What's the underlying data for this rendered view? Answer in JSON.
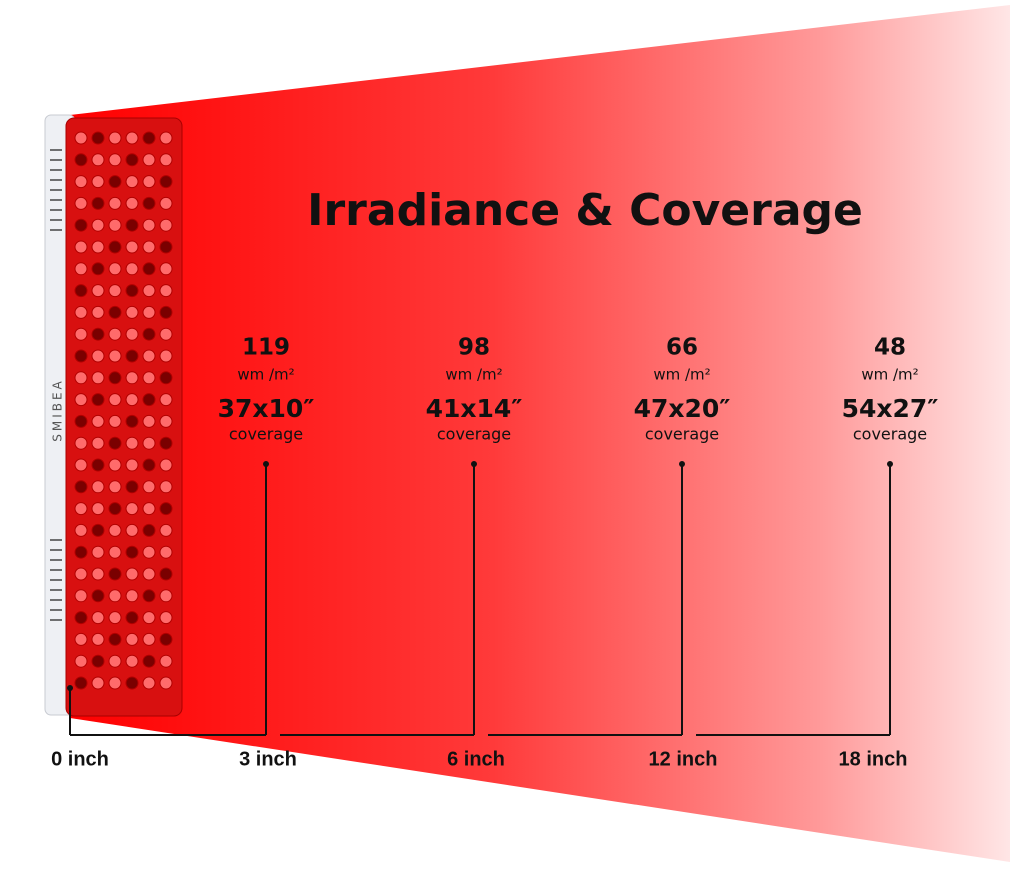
{
  "title": "Irradiance & Coverage",
  "brand": "SMIBEA",
  "points": [
    {
      "irradiance": 119,
      "unit": "wm /m²",
      "coverage": "37x10″",
      "coverage_label": "coverage"
    },
    {
      "irradiance": 98,
      "unit": "wm /m²",
      "coverage": "41x14″",
      "coverage_label": "coverage"
    },
    {
      "irradiance": 66,
      "unit": "wm /m²",
      "coverage": "47x20″",
      "coverage_label": "coverage"
    },
    {
      "irradiance": 48,
      "unit": "wm /m²",
      "coverage": "54x27″",
      "coverage_label": "coverage"
    }
  ],
  "distances": [
    "0 inch",
    "3 inch",
    "6 inch",
    "12 inch",
    "18 inch"
  ]
}
